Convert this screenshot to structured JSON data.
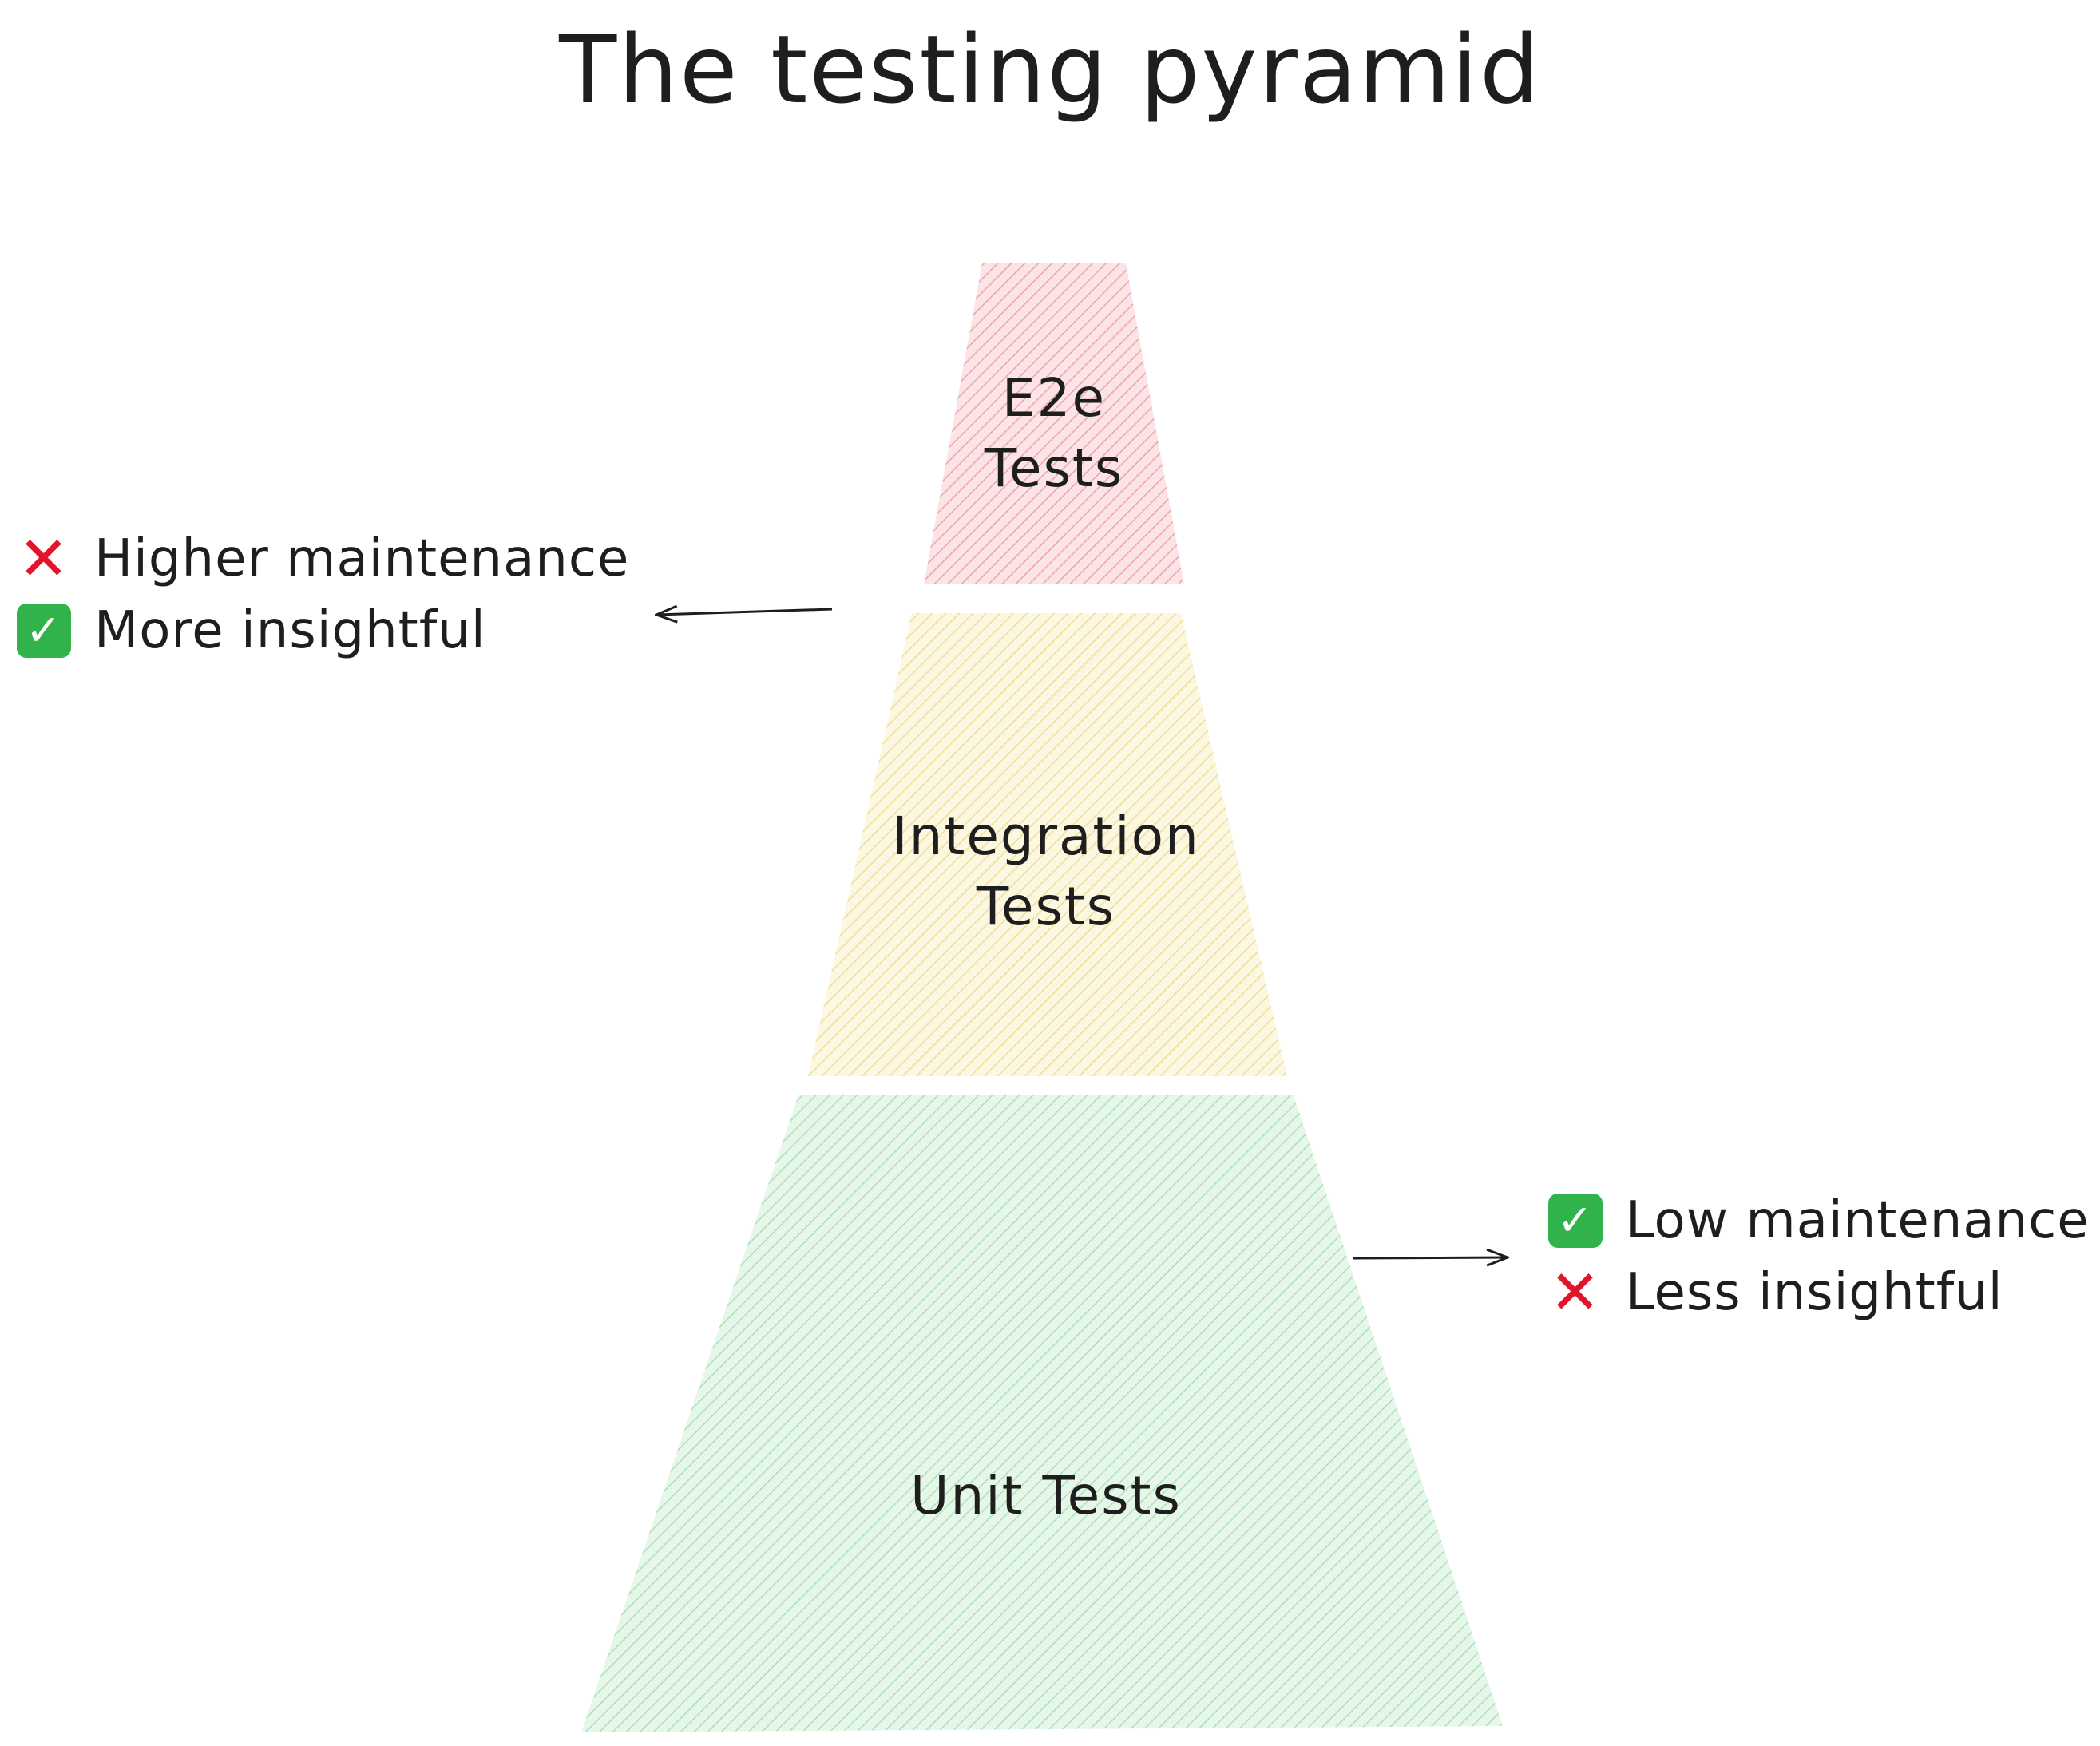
{
  "title": "The testing pyramid",
  "pyramid": {
    "layers": [
      {
        "id": "e2e",
        "line1": "E2e",
        "line2": "Tests",
        "fill": "#f4c9cd",
        "hatch": "#eba5ac"
      },
      {
        "id": "integration",
        "line1": "Integration",
        "line2": "Tests",
        "fill": "#f8eec0",
        "hatch": "#efde95"
      },
      {
        "id": "unit",
        "line1": "Unit Tests",
        "line2": "",
        "fill": "#d0f0d8",
        "hatch": "#a9e1b6"
      }
    ]
  },
  "notes": {
    "top": {
      "items": [
        {
          "icon": "cross-mark-icon",
          "text": "Higher maintenance"
        },
        {
          "icon": "check-mark-icon",
          "text": "More insightful"
        }
      ]
    },
    "bottom": {
      "items": [
        {
          "icon": "check-mark-icon",
          "text": "Low maintenance"
        },
        {
          "icon": "cross-mark-icon",
          "text": "Less insightful"
        }
      ]
    }
  },
  "colors": {
    "ink": "#1e1e1e",
    "cross": "#e0142b",
    "check": "#2fb34a"
  }
}
